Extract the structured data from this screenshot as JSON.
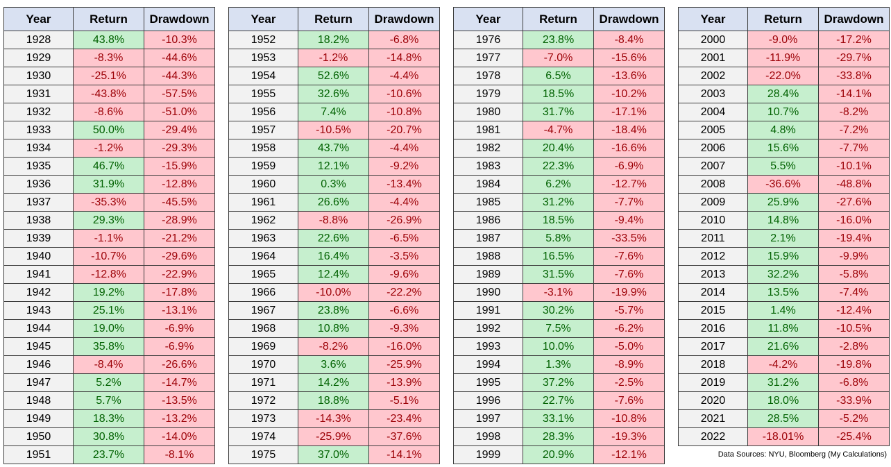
{
  "headers": {
    "year": "Year",
    "return": "Return",
    "drawdown": "Drawdown"
  },
  "source_note": "Data Sources: NYU, Bloomberg (My Calculations)",
  "tables": [
    {
      "rows": [
        [
          "1928",
          "43.8%",
          "-10.3%"
        ],
        [
          "1929",
          "-8.3%",
          "-44.6%"
        ],
        [
          "1930",
          "-25.1%",
          "-44.3%"
        ],
        [
          "1931",
          "-43.8%",
          "-57.5%"
        ],
        [
          "1932",
          "-8.6%",
          "-51.0%"
        ],
        [
          "1933",
          "50.0%",
          "-29.4%"
        ],
        [
          "1934",
          "-1.2%",
          "-29.3%"
        ],
        [
          "1935",
          "46.7%",
          "-15.9%"
        ],
        [
          "1936",
          "31.9%",
          "-12.8%"
        ],
        [
          "1937",
          "-35.3%",
          "-45.5%"
        ],
        [
          "1938",
          "29.3%",
          "-28.9%"
        ],
        [
          "1939",
          "-1.1%",
          "-21.2%"
        ],
        [
          "1940",
          "-10.7%",
          "-29.6%"
        ],
        [
          "1941",
          "-12.8%",
          "-22.9%"
        ],
        [
          "1942",
          "19.2%",
          "-17.8%"
        ],
        [
          "1943",
          "25.1%",
          "-13.1%"
        ],
        [
          "1944",
          "19.0%",
          "-6.9%"
        ],
        [
          "1945",
          "35.8%",
          "-6.9%"
        ],
        [
          "1946",
          "-8.4%",
          "-26.6%"
        ],
        [
          "1947",
          "5.2%",
          "-14.7%"
        ],
        [
          "1948",
          "5.7%",
          "-13.5%"
        ],
        [
          "1949",
          "18.3%",
          "-13.2%"
        ],
        [
          "1950",
          "30.8%",
          "-14.0%"
        ],
        [
          "1951",
          "23.7%",
          "-8.1%"
        ]
      ]
    },
    {
      "rows": [
        [
          "1952",
          "18.2%",
          "-6.8%"
        ],
        [
          "1953",
          "-1.2%",
          "-14.8%"
        ],
        [
          "1954",
          "52.6%",
          "-4.4%"
        ],
        [
          "1955",
          "32.6%",
          "-10.6%"
        ],
        [
          "1956",
          "7.4%",
          "-10.8%"
        ],
        [
          "1957",
          "-10.5%",
          "-20.7%"
        ],
        [
          "1958",
          "43.7%",
          "-4.4%"
        ],
        [
          "1959",
          "12.1%",
          "-9.2%"
        ],
        [
          "1960",
          "0.3%",
          "-13.4%"
        ],
        [
          "1961",
          "26.6%",
          "-4.4%"
        ],
        [
          "1962",
          "-8.8%",
          "-26.9%"
        ],
        [
          "1963",
          "22.6%",
          "-6.5%"
        ],
        [
          "1964",
          "16.4%",
          "-3.5%"
        ],
        [
          "1965",
          "12.4%",
          "-9.6%"
        ],
        [
          "1966",
          "-10.0%",
          "-22.2%"
        ],
        [
          "1967",
          "23.8%",
          "-6.6%"
        ],
        [
          "1968",
          "10.8%",
          "-9.3%"
        ],
        [
          "1969",
          "-8.2%",
          "-16.0%"
        ],
        [
          "1970",
          "3.6%",
          "-25.9%"
        ],
        [
          "1971",
          "14.2%",
          "-13.9%"
        ],
        [
          "1972",
          "18.8%",
          "-5.1%"
        ],
        [
          "1973",
          "-14.3%",
          "-23.4%"
        ],
        [
          "1974",
          "-25.9%",
          "-37.6%"
        ],
        [
          "1975",
          "37.0%",
          "-14.1%"
        ]
      ]
    },
    {
      "rows": [
        [
          "1976",
          "23.8%",
          "-8.4%"
        ],
        [
          "1977",
          "-7.0%",
          "-15.6%"
        ],
        [
          "1978",
          "6.5%",
          "-13.6%"
        ],
        [
          "1979",
          "18.5%",
          "-10.2%"
        ],
        [
          "1980",
          "31.7%",
          "-17.1%"
        ],
        [
          "1981",
          "-4.7%",
          "-18.4%"
        ],
        [
          "1982",
          "20.4%",
          "-16.6%"
        ],
        [
          "1983",
          "22.3%",
          "-6.9%"
        ],
        [
          "1984",
          "6.2%",
          "-12.7%"
        ],
        [
          "1985",
          "31.2%",
          "-7.7%"
        ],
        [
          "1986",
          "18.5%",
          "-9.4%"
        ],
        [
          "1987",
          "5.8%",
          "-33.5%"
        ],
        [
          "1988",
          "16.5%",
          "-7.6%"
        ],
        [
          "1989",
          "31.5%",
          "-7.6%"
        ],
        [
          "1990",
          "-3.1%",
          "-19.9%"
        ],
        [
          "1991",
          "30.2%",
          "-5.7%"
        ],
        [
          "1992",
          "7.5%",
          "-6.2%"
        ],
        [
          "1993",
          "10.0%",
          "-5.0%"
        ],
        [
          "1994",
          "1.3%",
          "-8.9%"
        ],
        [
          "1995",
          "37.2%",
          "-2.5%"
        ],
        [
          "1996",
          "22.7%",
          "-7.6%"
        ],
        [
          "1997",
          "33.1%",
          "-10.8%"
        ],
        [
          "1998",
          "28.3%",
          "-19.3%"
        ],
        [
          "1999",
          "20.9%",
          "-12.1%"
        ]
      ]
    },
    {
      "rows": [
        [
          "2000",
          "-9.0%",
          "-17.2%"
        ],
        [
          "2001",
          "-11.9%",
          "-29.7%"
        ],
        [
          "2002",
          "-22.0%",
          "-33.8%"
        ],
        [
          "2003",
          "28.4%",
          "-14.1%"
        ],
        [
          "2004",
          "10.7%",
          "-8.2%"
        ],
        [
          "2005",
          "4.8%",
          "-7.2%"
        ],
        [
          "2006",
          "15.6%",
          "-7.7%"
        ],
        [
          "2007",
          "5.5%",
          "-10.1%"
        ],
        [
          "2008",
          "-36.6%",
          "-48.8%"
        ],
        [
          "2009",
          "25.9%",
          "-27.6%"
        ],
        [
          "2010",
          "14.8%",
          "-16.0%"
        ],
        [
          "2011",
          "2.1%",
          "-19.4%"
        ],
        [
          "2012",
          "15.9%",
          "-9.9%"
        ],
        [
          "2013",
          "32.2%",
          "-5.8%"
        ],
        [
          "2014",
          "13.5%",
          "-7.4%"
        ],
        [
          "2015",
          "1.4%",
          "-12.4%"
        ],
        [
          "2016",
          "11.8%",
          "-10.5%"
        ],
        [
          "2017",
          "21.6%",
          "-2.8%"
        ],
        [
          "2018",
          "-4.2%",
          "-19.8%"
        ],
        [
          "2019",
          "31.2%",
          "-6.8%"
        ],
        [
          "2020",
          "18.0%",
          "-33.9%"
        ],
        [
          "2021",
          "28.5%",
          "-5.2%"
        ],
        [
          "2022",
          "-18.01%",
          "-25.4%"
        ]
      ]
    }
  ]
}
